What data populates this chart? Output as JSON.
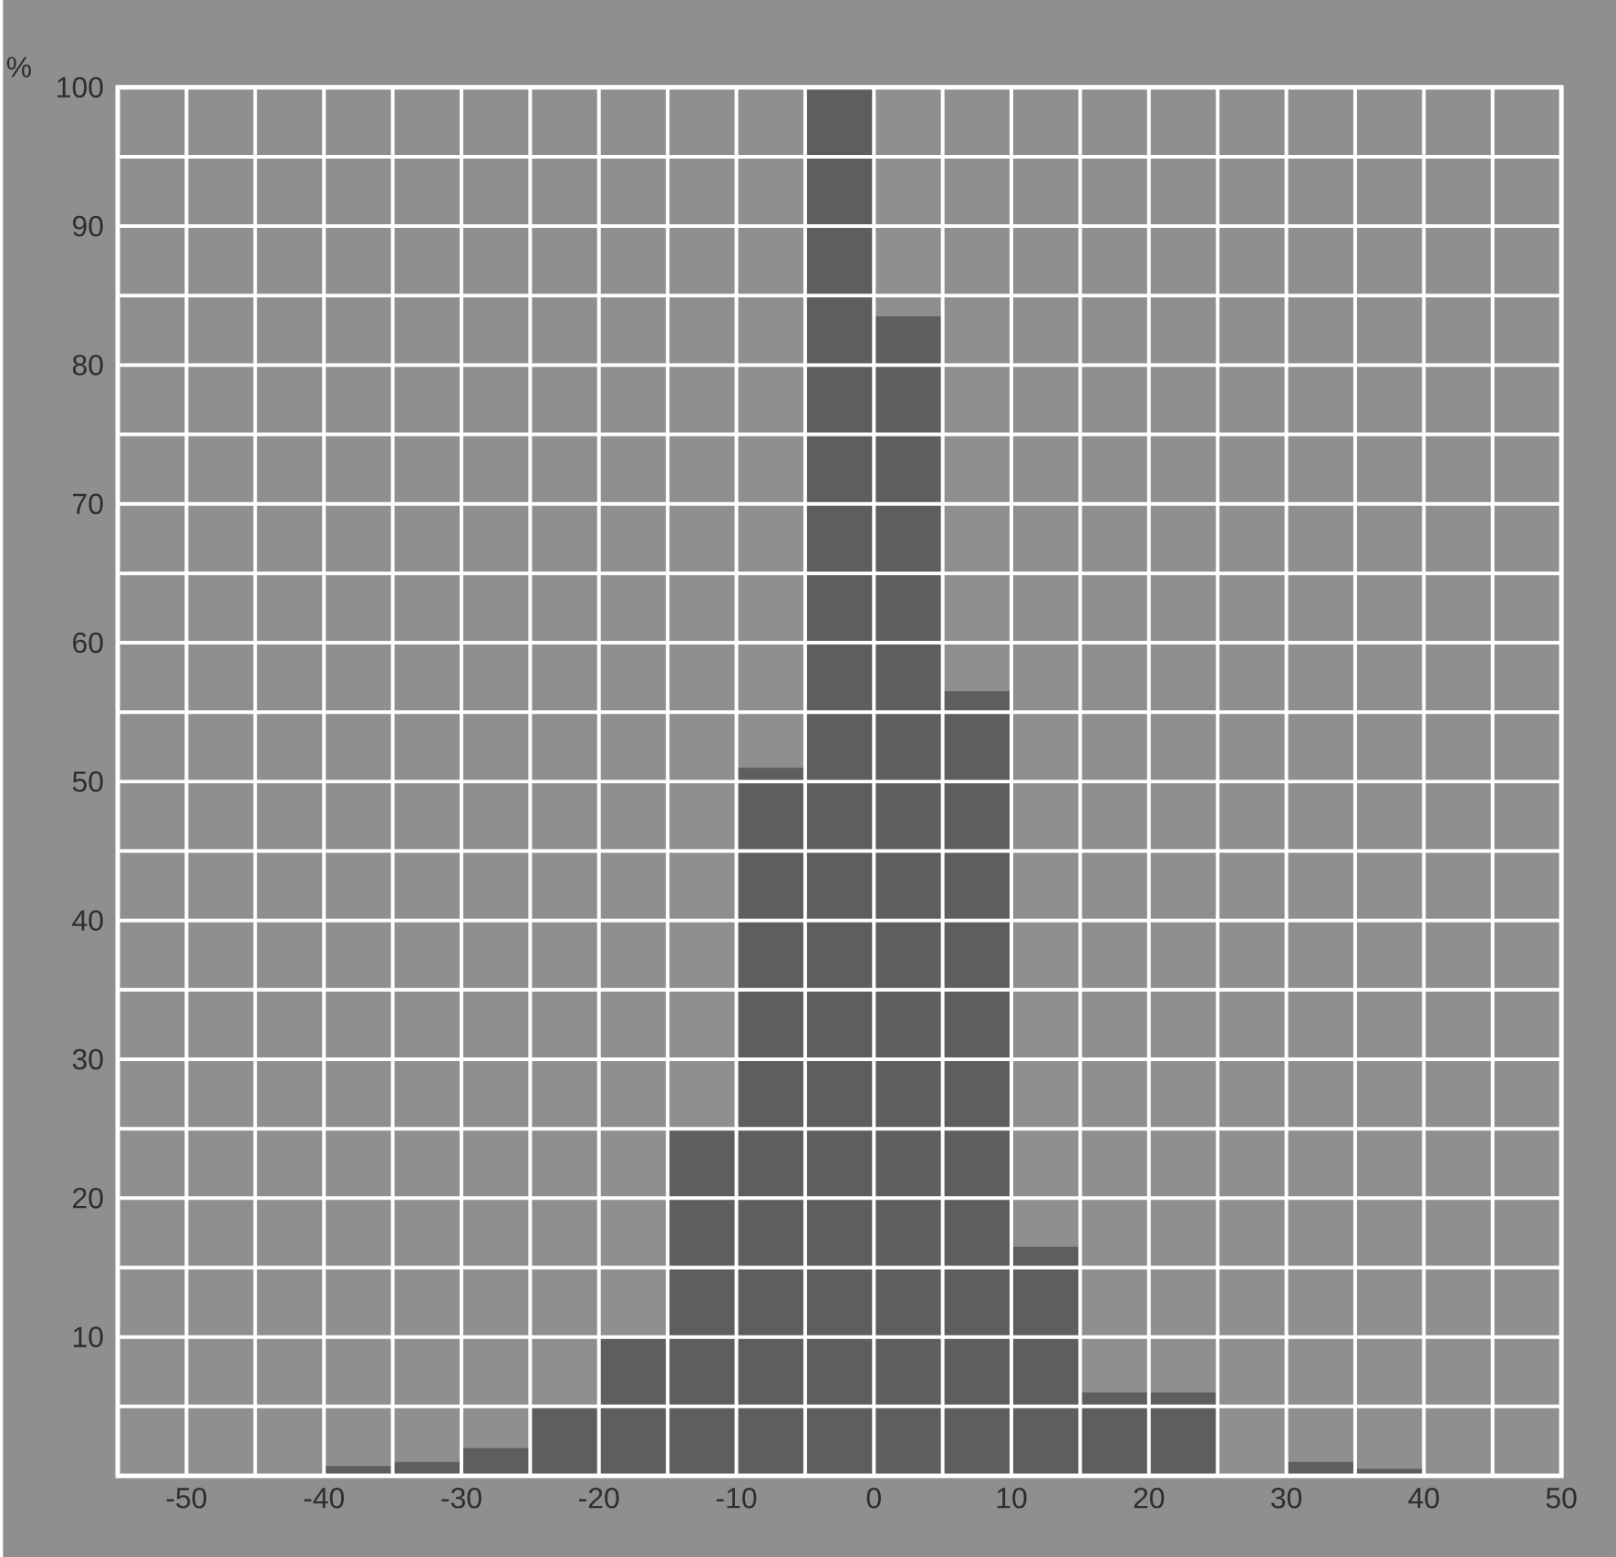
{
  "chart_data": {
    "type": "histogram",
    "ylabel": "%",
    "bins": [
      -40,
      -35,
      -30,
      -25,
      -20,
      -15,
      -10,
      -5,
      0,
      5,
      10,
      15,
      20,
      25,
      30,
      35,
      40
    ],
    "values": [
      0.7,
      1,
      2,
      5,
      10,
      25,
      51,
      100,
      83.5,
      56.5,
      16.5,
      6,
      6,
      0,
      1,
      0.5
    ],
    "color": "#5e5e5e",
    "xlim": [
      -55,
      50
    ],
    "ylim": [
      0,
      100
    ],
    "xticks": [
      {
        "value": -55,
        "label": null
      },
      -50,
      {
        "value": -45,
        "label": null
      },
      -40,
      {
        "value": -35,
        "label": null
      },
      -30,
      {
        "value": -25,
        "label": null
      },
      -20,
      {
        "value": -15,
        "label": null
      },
      -10,
      {
        "value": -5,
        "label": null
      },
      0,
      {
        "value": 5,
        "label": null
      },
      10,
      {
        "value": 15,
        "label": null
      },
      20,
      {
        "value": 25,
        "label": null
      },
      30,
      {
        "value": 35,
        "label": null
      },
      40,
      {
        "value": 45,
        "label": null
      },
      50
    ],
    "yticks": [
      {
        "value": 0,
        "label": null
      },
      {
        "value": 5,
        "label": null
      },
      10,
      {
        "value": 15,
        "label": null
      },
      20,
      {
        "value": 25,
        "label": null
      },
      30,
      {
        "value": 35,
        "label": null
      },
      40,
      {
        "value": 45,
        "label": null
      },
      50,
      {
        "value": 55,
        "label": null
      },
      60,
      {
        "value": 65,
        "label": null
      },
      70,
      {
        "value": 75,
        "label": null
      },
      80,
      {
        "value": 85,
        "label": null
      },
      90,
      {
        "value": 95,
        "label": null
      },
      100
    ],
    "grid": true
  }
}
